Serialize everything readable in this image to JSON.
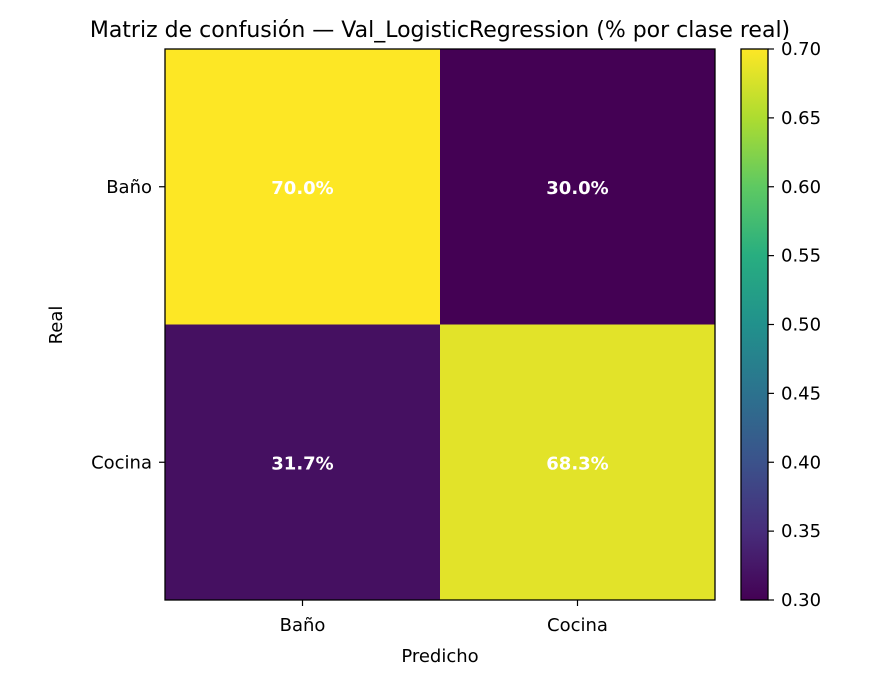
{
  "chart_data": {
    "type": "heatmap",
    "title": "Matriz de confusión — Val_LogisticRegression (% por clase real)",
    "xlabel": "Predicho",
    "ylabel": "Real",
    "x_categories": [
      "Baño",
      "Cocina"
    ],
    "y_categories": [
      "Baño",
      "Cocina"
    ],
    "values": [
      [
        0.7,
        0.3
      ],
      [
        0.317,
        0.683
      ]
    ],
    "cell_labels": [
      [
        "70.0%",
        "30.0%"
      ],
      [
        "31.7%",
        "68.3%"
      ]
    ],
    "colormap": "viridis",
    "colorbar": {
      "range": [
        0.3,
        0.7
      ],
      "ticks": [
        "0.30",
        "0.35",
        "0.40",
        "0.45",
        "0.50",
        "0.55",
        "0.60",
        "0.65",
        "0.70"
      ]
    },
    "grid": false
  }
}
